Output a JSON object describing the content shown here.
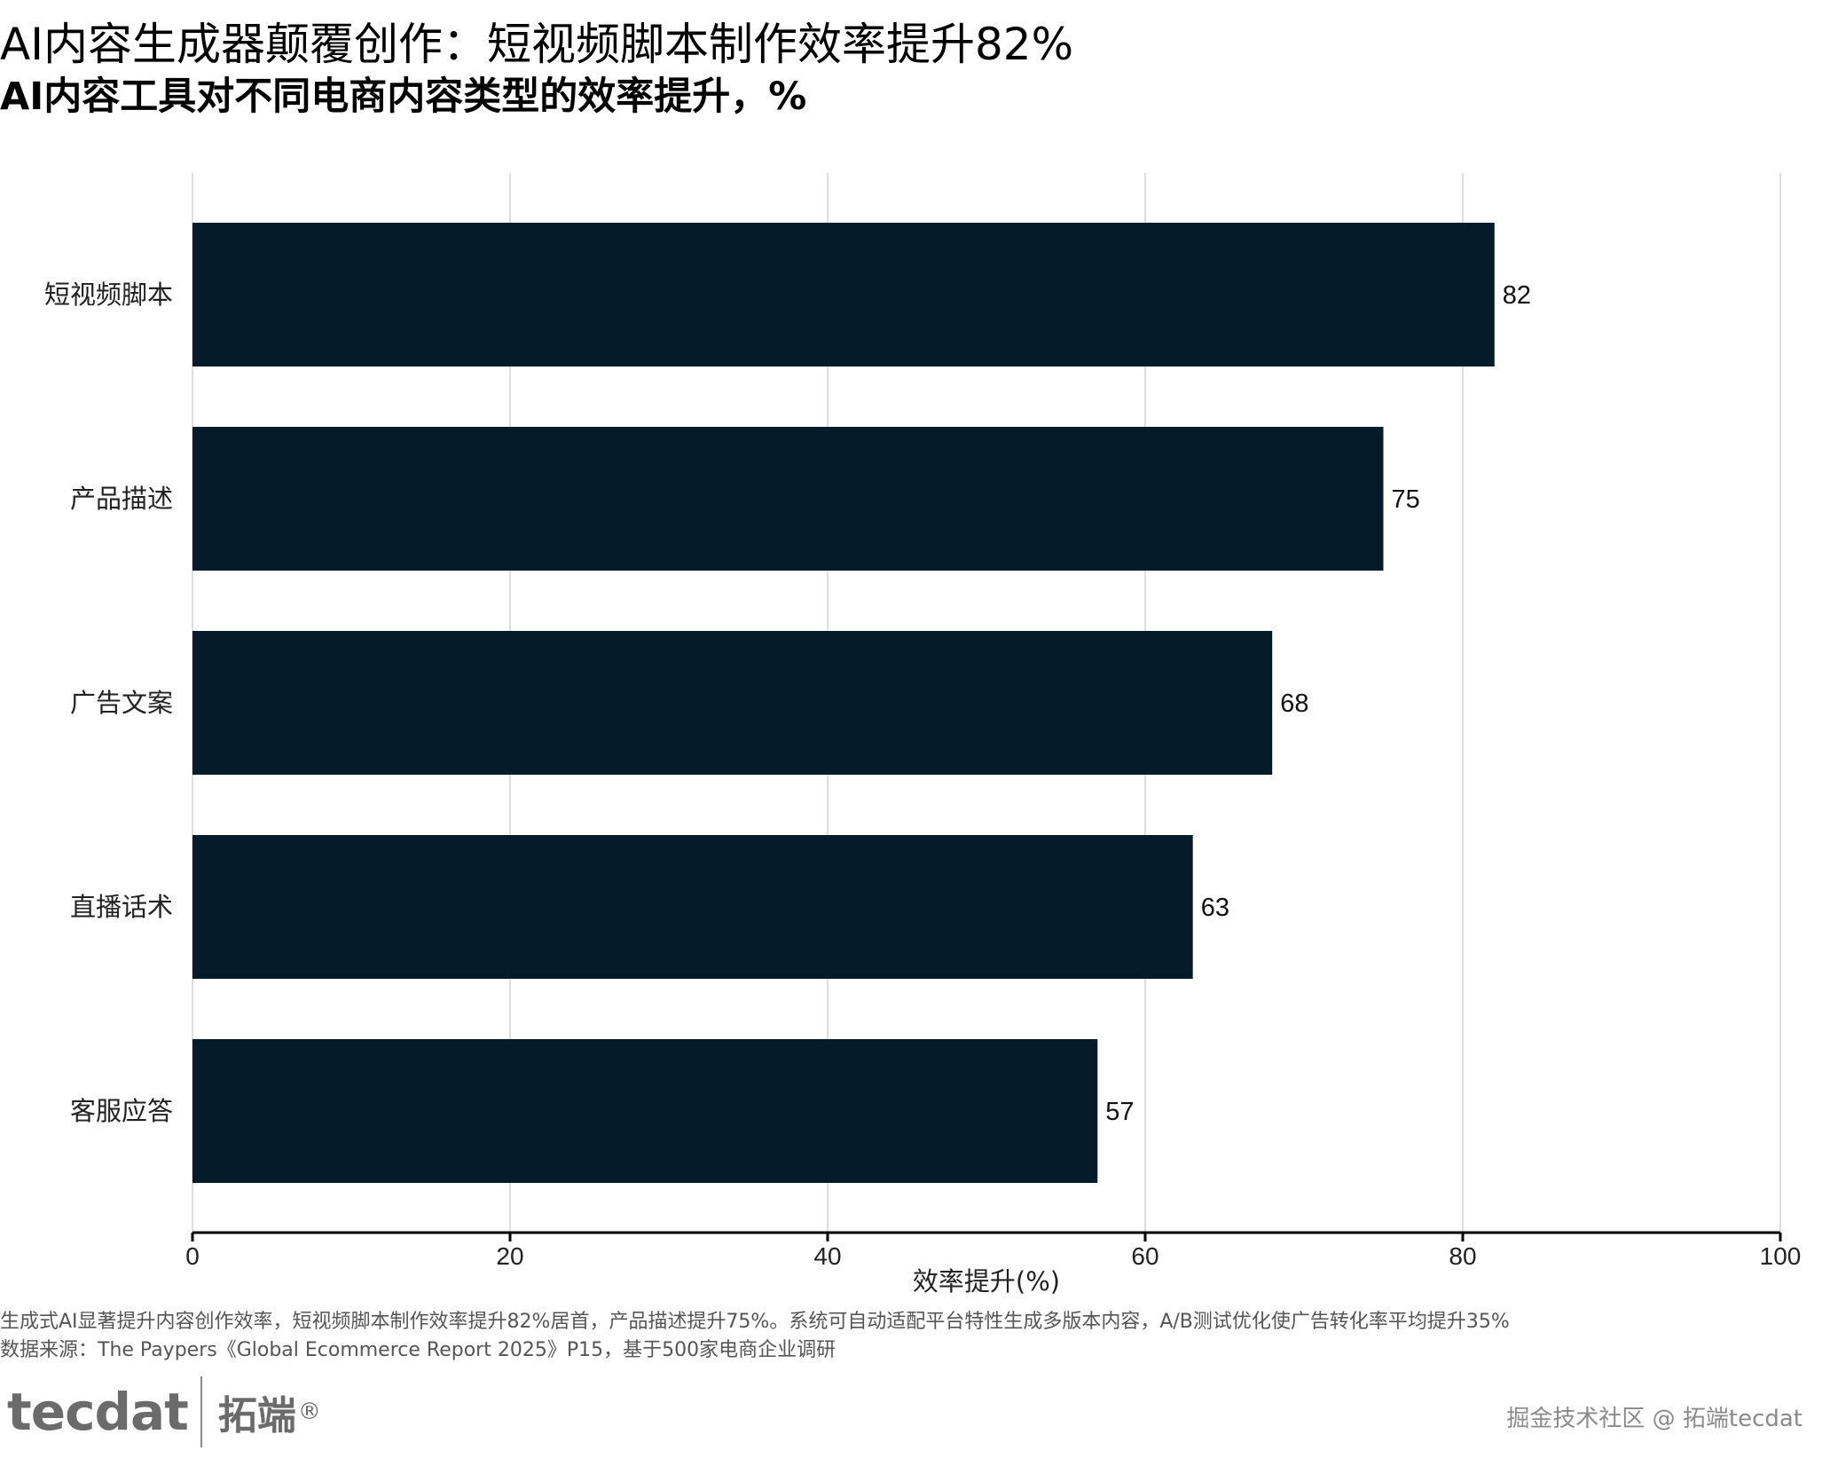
{
  "header": {
    "title": "AI内容生成器颠覆创作：短视频脚本制作效率提升82%",
    "subtitle": "AI内容工具对不同电商内容类型的效率提升，%"
  },
  "chart_data": {
    "type": "bar",
    "orientation": "horizontal",
    "categories": [
      "短视频脚本",
      "产品描述",
      "广告文案",
      "直播话术",
      "客服应答"
    ],
    "values": [
      82,
      75,
      68,
      63,
      57
    ],
    "xlabel": "效率提升(%)",
    "ylabel": "",
    "xlim": [
      0,
      100
    ],
    "xticks": [
      0,
      20,
      40,
      60,
      80,
      100
    ],
    "grid": true,
    "bar_color": "#061b2a",
    "data_labels": true
  },
  "footer": {
    "note": "生成式AI显著提升内容创作效率，短视频脚本制作效率提升82%居首，产品描述提升75%。系统可自动适配平台特性生成多版本内容，A/B测试优化使广告转化率平均提升35%",
    "source": "数据来源：The Paypers《Global Ecommerce Report 2025》P15，基于500家电商企业调研"
  },
  "brand": {
    "logo_text": "tecdat",
    "logo_cn": "拓端",
    "logo_mark": "®",
    "watermark": "掘金技术社区 @ 拓端tecdat"
  }
}
